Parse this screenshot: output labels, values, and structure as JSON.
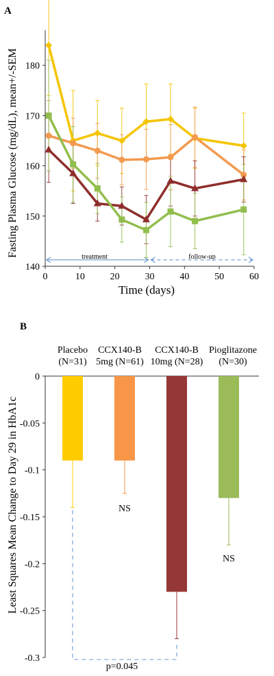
{
  "panels": [
    {
      "panel_label": "A",
      "type": "line",
      "ylabel": "Fasting Plasma Glucose (mg/dL), mean+/-SEM",
      "xlabel": "Time (days)",
      "xlim": [
        0,
        60
      ],
      "ylim": [
        140,
        187
      ],
      "xticks": [
        0,
        10,
        20,
        30,
        40,
        50,
        60
      ],
      "yticks": [
        140,
        150,
        160,
        170,
        180
      ],
      "grid": false,
      "colors": {
        "yellow": "#F5C400",
        "orange": "#F29A50",
        "darkred": "#8E2E2C",
        "green": "#92BE4E",
        "arrow": "#6E9AD0"
      },
      "series": [
        {
          "color": "#F5C400",
          "marker": "diamond",
          "x": [
            1,
            8,
            15,
            22,
            29,
            36,
            43,
            57
          ],
          "y": [
            184,
            165,
            166.5,
            165,
            168.8,
            169.3,
            165.5,
            164
          ],
          "err": [
            10,
            10,
            6.5,
            6.5,
            7.5,
            7,
            6,
            6.5
          ]
        },
        {
          "color": "#F29A50",
          "marker": "circle",
          "x": [
            1,
            8,
            15,
            22,
            29,
            36,
            43,
            57
          ],
          "y": [
            166,
            164.5,
            163,
            161.2,
            161.3,
            161.7,
            165.7,
            158.2
          ],
          "err": [
            7,
            5,
            5.5,
            5,
            6,
            6.5,
            6,
            5
          ]
        },
        {
          "color": "#8E2E2C",
          "marker": "triangle",
          "x": [
            1,
            8,
            15,
            22,
            29,
            36,
            43,
            57
          ],
          "y": [
            163.2,
            158.5,
            152.5,
            152,
            149.3,
            157,
            155.5,
            157.3
          ],
          "err": [
            6.5,
            6,
            3.5,
            3.8,
            4.8,
            5,
            5.5,
            4.5
          ]
        },
        {
          "color": "#92BE4E",
          "marker": "square",
          "x": [
            1,
            8,
            15,
            22,
            29,
            36,
            43,
            57
          ],
          "y": [
            170,
            160.3,
            155.5,
            149.3,
            147.2,
            150.9,
            149,
            151.3
          ],
          "err": [
            11,
            7.5,
            5,
            4.5,
            5.5,
            7,
            5.5,
            9
          ]
        }
      ],
      "annotations": [
        {
          "text": "treatment",
          "x_from": 0,
          "x_to": 30,
          "y": 141
        },
        {
          "text": "follow-up",
          "x_from": 30,
          "x_to": 60,
          "y": 141
        }
      ]
    },
    {
      "panel_label": "B",
      "type": "bar",
      "ylabel": "Least Squares Mean Change to Day 29 in HbA1c",
      "ylim": [
        -0.3,
        0
      ],
      "yticks": [
        0,
        -0.05,
        -0.1,
        -0.15,
        -0.2,
        -0.25,
        -0.3
      ],
      "ytick_labels": [
        "0",
        "-0.05",
        "-0.1",
        "-0.15",
        "-0.2",
        "-0.25",
        "-0.3"
      ],
      "grid": false,
      "group_labels": [
        {
          "line1": "Placebo",
          "line2": "(N=31)"
        },
        {
          "line1": "CCX140-B",
          "line2": "5mg (N=61)"
        },
        {
          "line1": "CCX140-B",
          "line2": "10mg (N=28)"
        },
        {
          "line1": "Pioglitazone",
          "line2": "(N=30)"
        }
      ],
      "values": [
        -0.09,
        -0.09,
        -0.23,
        -0.13
      ],
      "errors": [
        0.05,
        0.035,
        0.05,
        0.05
      ],
      "colors": [
        "#FFCC00",
        "#F79646",
        "#953735",
        "#9BBB59"
      ],
      "sig_labels": [
        "",
        "NS",
        "",
        "NS"
      ],
      "comparison": {
        "from_bar": 0,
        "to_bar": 2,
        "label": "p=0.045",
        "color": "#6E9AD0"
      }
    }
  ]
}
